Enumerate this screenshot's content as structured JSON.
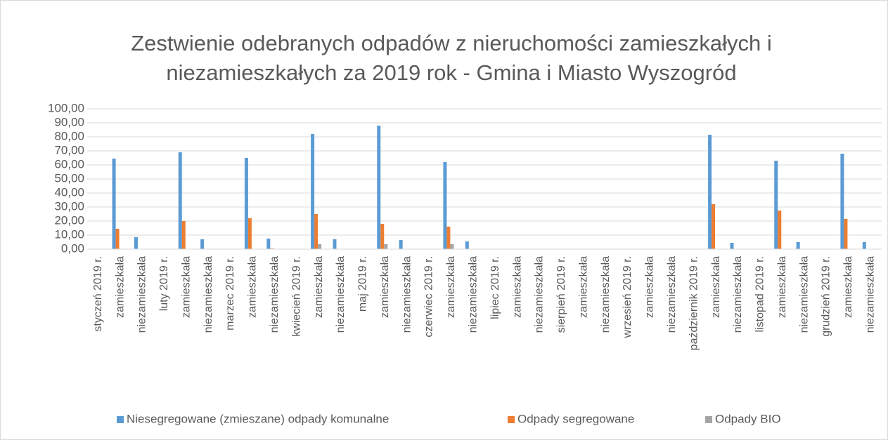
{
  "chart_data": {
    "type": "bar",
    "title": [
      "Zestwienie odebranych odpadów z nieruchomości zamieszkałych i",
      "niezamieszkałych za 2019 rok - Gmina i Miasto Wyszogród"
    ],
    "categories": [
      "styczeń 2019 r.",
      "zamieszkała",
      "niezamieszkała",
      "luty 2019 r.",
      "zamieszkała",
      "niezamieszkała",
      "marzec 2019 r.",
      "zamieszkała",
      "niezamieszkała",
      "kwiecień 2019 r.",
      "zamieszkała",
      "niezamieszkała",
      "maj 2019 r.",
      "zamieszkała",
      "niezamieszkała",
      "czerwiec 2019 r.",
      "zamieszkała",
      "niezamieszkała",
      "lipiec 2019 r.",
      "zamieszkała",
      "niezamieszkała",
      "sierpień 2019 r.",
      "zamieszkała",
      "niezamieszkała",
      "wrzesień 2019 r.",
      "zamieszkała",
      "niezamieszkała",
      "październik 2019 r.",
      "zamieszkała",
      "niezamieszkała",
      "listopad 2019 r.",
      "zamieszkała",
      "niezamieszkała",
      "grudzień 2019 r.",
      "zamieszkała",
      "niezamieszkała"
    ],
    "series": [
      {
        "name": "Niesegregowane (zmieszane) odpady komunalne",
        "color": "#5b9bd5",
        "values": [
          null,
          64.5,
          8.5,
          null,
          69,
          7,
          null,
          65,
          7.5,
          null,
          82,
          7,
          null,
          88,
          6.5,
          null,
          62,
          5.5,
          null,
          0,
          0,
          null,
          0,
          0,
          null,
          0,
          0,
          null,
          81.5,
          4.5,
          null,
          63,
          5,
          null,
          68,
          5
        ]
      },
      {
        "name": "Odpady segregowane",
        "color": "#ed7d31",
        "values": [
          null,
          14.5,
          0,
          null,
          20,
          0,
          null,
          22,
          0.5,
          null,
          25,
          0,
          null,
          18,
          0,
          null,
          16,
          0,
          null,
          0,
          0,
          null,
          0,
          0,
          null,
          0,
          0,
          null,
          32,
          0,
          null,
          27.5,
          0,
          null,
          21.5,
          0
        ]
      },
      {
        "name": "Odpady BIO",
        "color": "#a5a5a5",
        "values": [
          null,
          0,
          0,
          null,
          0,
          0,
          null,
          0,
          0,
          null,
          3.5,
          0,
          null,
          3.5,
          0,
          null,
          3.5,
          0,
          null,
          0,
          0,
          null,
          0,
          0,
          null,
          0,
          0,
          null,
          0,
          0,
          null,
          0,
          0,
          null,
          0,
          0
        ]
      }
    ],
    "ylim": [
      0,
      100
    ],
    "yticks": [
      {
        "value": 0,
        "label": "0,00"
      },
      {
        "value": 10,
        "label": "10,00"
      },
      {
        "value": 20,
        "label": "20,00"
      },
      {
        "value": 30,
        "label": "30,00"
      },
      {
        "value": 40,
        "label": "40,00"
      },
      {
        "value": 50,
        "label": "50,00"
      },
      {
        "value": 60,
        "label": "60,00"
      },
      {
        "value": 70,
        "label": "70,00"
      },
      {
        "value": 80,
        "label": "80,00"
      },
      {
        "value": 90,
        "label": "90,00"
      },
      {
        "value": 100,
        "label": "100,00"
      }
    ],
    "grid": true,
    "legend": "bottom"
  }
}
